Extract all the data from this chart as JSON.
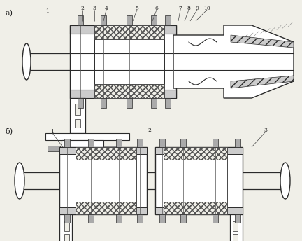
{
  "bg": "#f0efe8",
  "lc": "#2a2a2a",
  "lc2": "#555555",
  "white": "#ffffff",
  "gray_light": "#cccccc",
  "gray_mid": "#aaaaaa",
  "gray_hatch": "#888888",
  "figw": 4.32,
  "figh": 3.44,
  "dpi": 100,
  "title_a": "а)",
  "title_b": "б)",
  "labels_a": [
    "1",
    "2",
    "3",
    "4",
    "5",
    "6",
    "7",
    "8",
    "9",
    "10"
  ],
  "labels_b": [
    "1",
    "2",
    "3"
  ]
}
